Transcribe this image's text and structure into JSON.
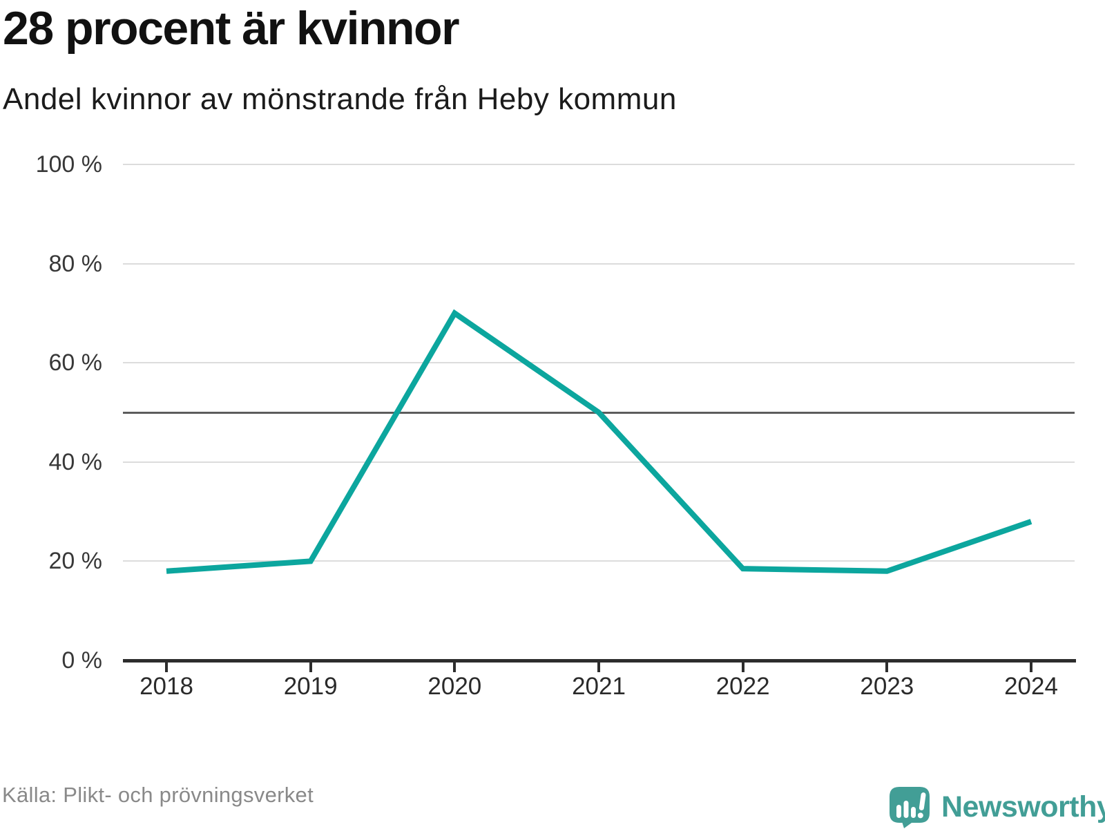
{
  "header": {
    "title": "28 procent är kvinnor",
    "subtitle": "Andel kvinnor av mönstrande från Heby kommun"
  },
  "footer": {
    "source": "Källa: Plikt- och prövningsverket",
    "logo_text": "Newsworthy"
  },
  "colors": {
    "line": "#0ca69e",
    "grid": "#dcdcdc",
    "reference_line": "#5c5c5c",
    "axis": "#2d2d2d",
    "title_text": "#111111",
    "subtitle_text": "#1b1b1b",
    "ytick_text": "#383838",
    "xtick_text": "#2a2a2a",
    "source_text": "#898989",
    "logo": "#429e96"
  },
  "chart_data": {
    "type": "line",
    "title": "28 procent är kvinnor",
    "subtitle": "Andel kvinnor av mönstrande från Heby kommun",
    "categories": [
      "2018",
      "2019",
      "2020",
      "2021",
      "2022",
      "2023",
      "2024"
    ],
    "series": [
      {
        "name": "Andel kvinnor av mönstrande",
        "values": [
          18,
          20,
          70,
          50,
          18.5,
          18,
          28
        ]
      }
    ],
    "unit": "%",
    "ylim": [
      0,
      100
    ],
    "yticks": [
      0,
      20,
      40,
      60,
      80,
      100
    ],
    "ytick_labels": [
      "0 %",
      "20 %",
      "40 %",
      "60 %",
      "80 %",
      "100 %"
    ],
    "reference_line": 50,
    "grid": "horizontal-only",
    "legend": "none",
    "source": "Källa: Plikt- och prövningsverket"
  }
}
